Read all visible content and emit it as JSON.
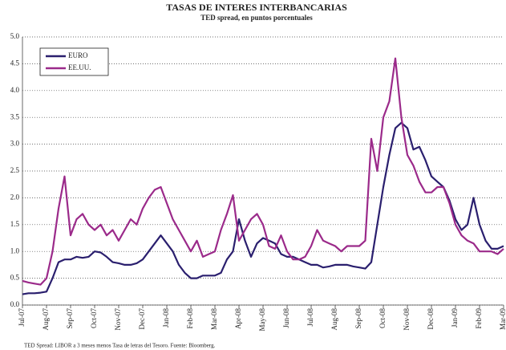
{
  "chart_data": {
    "type": "line",
    "title": "TASAS DE INTERES INTERBANCARIAS",
    "subtitle": "TED spread, en puntos porcentuales",
    "note": "TED Spread: LIBOR a 3 meses menos Tasa de letras del Tesoro. Fuente: Bloomberg.",
    "categories": [
      "Jul-07",
      null,
      null,
      null,
      "Aug-07",
      null,
      null,
      null,
      "Sep-07",
      null,
      null,
      null,
      "Oct-07",
      null,
      null,
      null,
      "Nov-07",
      null,
      null,
      null,
      "Dec-07",
      null,
      null,
      null,
      "Jan-08",
      null,
      null,
      null,
      "Feb-08",
      null,
      null,
      null,
      "Mar-08",
      null,
      null,
      null,
      "Apr-08",
      null,
      null,
      null,
      "May-08",
      null,
      null,
      null,
      "Jun-08",
      null,
      null,
      null,
      "Jul-08",
      null,
      null,
      null,
      "Aug-08",
      null,
      null,
      null,
      "Sep-08",
      null,
      null,
      null,
      "Oct-08",
      null,
      null,
      null,
      "Nov-08",
      null,
      null,
      null,
      "Dec-08",
      null,
      null,
      null,
      "Jan-09",
      null,
      null,
      null,
      "Feb-09",
      null,
      null,
      null,
      "Mar-09"
    ],
    "series": [
      {
        "name": "EURO",
        "color": "#2a1f6e",
        "values": [
          0.2,
          0.22,
          0.22,
          0.23,
          0.25,
          0.5,
          0.8,
          0.85,
          0.85,
          0.9,
          0.88,
          0.9,
          1.0,
          0.98,
          0.9,
          0.8,
          0.78,
          0.75,
          0.75,
          0.78,
          0.85,
          1.0,
          1.15,
          1.3,
          1.15,
          1.0,
          0.75,
          0.6,
          0.5,
          0.5,
          0.55,
          0.55,
          0.55,
          0.6,
          0.85,
          1.0,
          1.6,
          1.2,
          0.9,
          1.15,
          1.25,
          1.2,
          1.15,
          0.95,
          0.9,
          0.9,
          0.85,
          0.8,
          0.75,
          0.75,
          0.7,
          0.72,
          0.75,
          0.75,
          0.75,
          0.72,
          0.7,
          0.68,
          0.8,
          1.5,
          2.2,
          2.8,
          3.3,
          3.4,
          3.3,
          2.9,
          2.95,
          2.7,
          2.4,
          2.3,
          2.2,
          1.95,
          1.6,
          1.4,
          1.5,
          2.0,
          1.5,
          1.2,
          1.05,
          1.05,
          1.1
        ]
      },
      {
        "name": "EE.UU.",
        "color": "#9b2a8a",
        "values": [
          0.45,
          0.42,
          0.4,
          0.38,
          0.5,
          1.0,
          1.8,
          2.4,
          1.3,
          1.6,
          1.7,
          1.5,
          1.4,
          1.5,
          1.3,
          1.4,
          1.2,
          1.4,
          1.6,
          1.5,
          1.8,
          2.0,
          2.15,
          2.2,
          1.9,
          1.6,
          1.4,
          1.2,
          1.0,
          1.2,
          0.9,
          0.95,
          1.0,
          1.4,
          1.7,
          2.05,
          1.2,
          1.4,
          1.6,
          1.7,
          1.5,
          1.1,
          1.05,
          1.3,
          1.0,
          0.85,
          0.85,
          0.9,
          1.1,
          1.4,
          1.2,
          1.15,
          1.1,
          1.0,
          1.1,
          1.1,
          1.1,
          1.2,
          3.1,
          2.5,
          3.5,
          3.8,
          4.6,
          3.5,
          2.8,
          2.6,
          2.3,
          2.1,
          2.1,
          2.2,
          2.2,
          1.9,
          1.5,
          1.3,
          1.2,
          1.15,
          1.0,
          1.0,
          1.0,
          0.95,
          1.05
        ]
      }
    ],
    "ylim": [
      0,
      5
    ],
    "yticks": [
      {
        "value": 0,
        "label": "0.0"
      },
      0.5,
      {
        "value": 1,
        "label": "1.0"
      },
      1.5,
      {
        "value": 2,
        "label": "2.0"
      },
      2.5,
      {
        "value": 3,
        "label": "3.0"
      },
      3.5,
      {
        "value": 4,
        "label": "4.0"
      },
      4.5,
      {
        "value": 5,
        "label": "5.0"
      }
    ],
    "grid": true,
    "legend": "upper left"
  }
}
